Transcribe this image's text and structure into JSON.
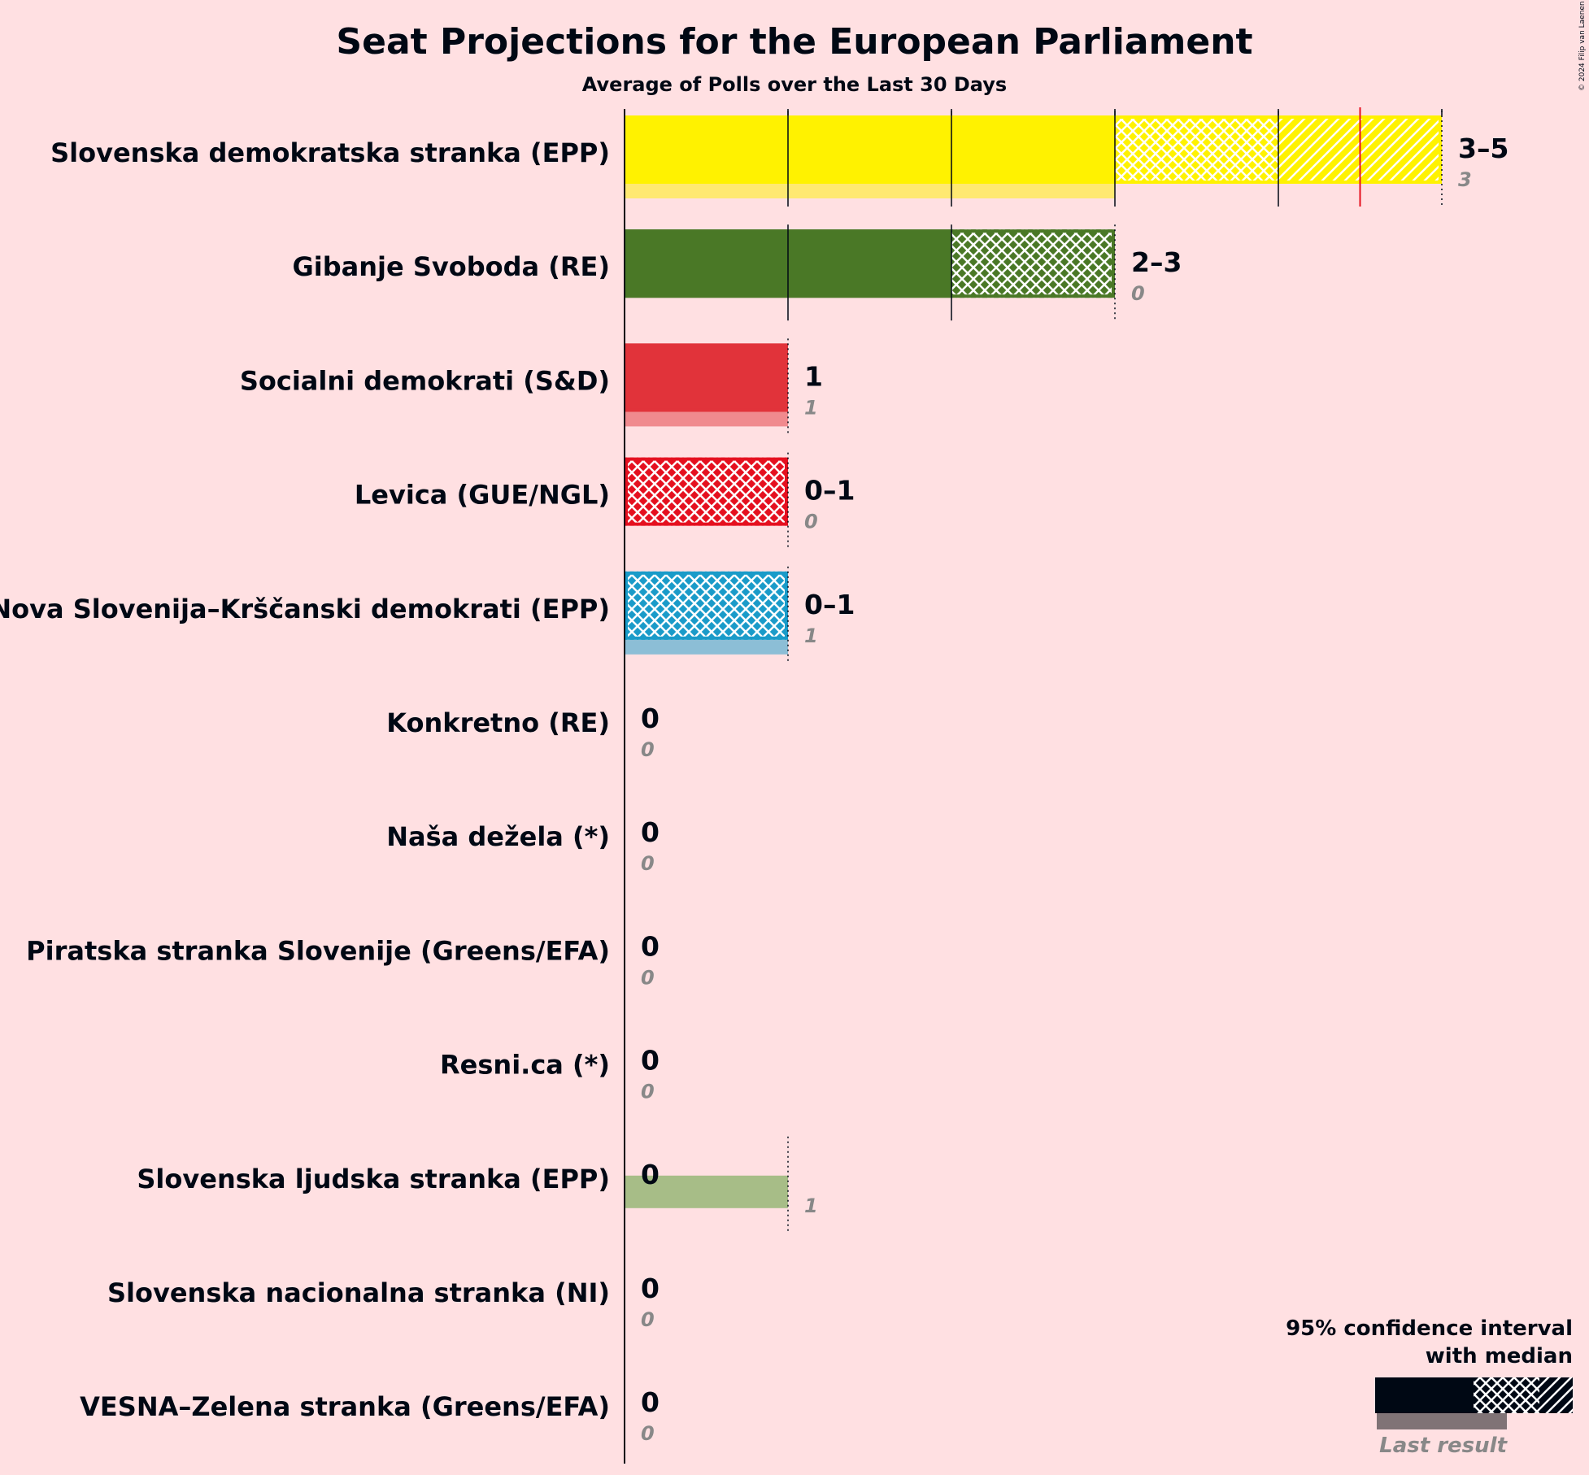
{
  "chart_data": {
    "type": "bar",
    "title": "Seat Projections for the European Parliament",
    "subtitle": "Average of Polls over the Last 30 Days",
    "copyright": "© 2024 Filip van Laenen",
    "seat_range": [
      0,
      5
    ],
    "majority_marker": 4.5,
    "parties": [
      {
        "name": "Slovenska demokratska stranka (EPP)",
        "color": "#fff200",
        "low": 3,
        "median": 4,
        "high": 5,
        "range_label": "3–5",
        "last_result": 3,
        "last_label": "3"
      },
      {
        "name": "Gibanje Svoboda (RE)",
        "color": "#4a7826",
        "low": 2,
        "median": 3,
        "high": 3,
        "range_label": "2–3",
        "last_result": 0,
        "last_label": "0"
      },
      {
        "name": "Socialni demokrati (S&D)",
        "color": "#e1333a",
        "low": 1,
        "median": 1,
        "high": 1,
        "range_label": "1",
        "last_result": 1,
        "last_label": "1"
      },
      {
        "name": "Levica (GUE/NGL)",
        "color": "#e5101f",
        "low": 0,
        "median": 1,
        "high": 1,
        "range_label": "0–1",
        "last_result": 0,
        "last_label": "0"
      },
      {
        "name": "Nova Slovenija–Krščanski demokrati (EPP)",
        "color": "#1a9bc9",
        "low": 0,
        "median": 1,
        "high": 1,
        "range_label": "0–1",
        "last_result": 1,
        "last_label": "1"
      },
      {
        "name": "Konkretno (RE)",
        "color": "#888888",
        "low": 0,
        "median": 0,
        "high": 0,
        "range_label": "0",
        "last_result": 0,
        "last_label": "0"
      },
      {
        "name": "Naša dežela (*)",
        "color": "#888888",
        "low": 0,
        "median": 0,
        "high": 0,
        "range_label": "0",
        "last_result": 0,
        "last_label": "0"
      },
      {
        "name": "Piratska stranka Slovenije (Greens/EFA)",
        "color": "#888888",
        "low": 0,
        "median": 0,
        "high": 0,
        "range_label": "0",
        "last_result": 0,
        "last_label": "0"
      },
      {
        "name": "Resni.ca (*)",
        "color": "#888888",
        "low": 0,
        "median": 0,
        "high": 0,
        "range_label": "0",
        "last_result": 0,
        "last_label": "0"
      },
      {
        "name": "Slovenska ljudska stranka (EPP)",
        "color": "#4f9a2c",
        "low": 0,
        "median": 0,
        "high": 0,
        "range_label": "0",
        "last_result": 1,
        "last_label": "1"
      },
      {
        "name": "Slovenska nacionalna stranka (NI)",
        "color": "#888888",
        "low": 0,
        "median": 0,
        "high": 0,
        "range_label": "0",
        "last_result": 0,
        "last_label": "0"
      },
      {
        "name": "VESNA–Zelena stranka (Greens/EFA)",
        "color": "#888888",
        "low": 0,
        "median": 0,
        "high": 0,
        "range_label": "0",
        "last_result": 0,
        "last_label": "0"
      }
    ]
  },
  "legend": {
    "line1": "95% confidence interval",
    "line2": "with median",
    "last_result": "Last result"
  },
  "colors": {
    "background": "#ffe0e2",
    "ink": "#000814",
    "majority": "#e5101f"
  }
}
